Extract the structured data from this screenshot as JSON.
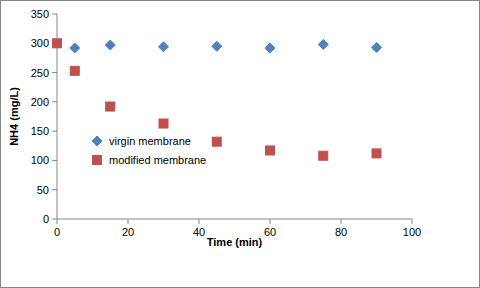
{
  "chart_data": {
    "type": "scatter",
    "x_label": "Time (min)",
    "y_label": "NH4 (mg/L)",
    "xlim": [
      0,
      100
    ],
    "xticks": [
      0,
      20,
      40,
      60,
      80,
      100
    ],
    "ylim": [
      0,
      350
    ],
    "yticks": [
      0,
      50,
      100,
      150,
      200,
      250,
      300,
      350
    ],
    "grid": false,
    "legend": "lower left",
    "series": [
      {
        "name": "virgin membrane",
        "color": "#4f81bd",
        "marker": "diamond",
        "x": [
          5,
          15,
          30,
          45,
          60,
          75,
          90
        ],
        "values": [
          292,
          297,
          294,
          295,
          292,
          298,
          293
        ]
      },
      {
        "name": "modified membrane",
        "color": "#c0504d",
        "marker": "square",
        "x": [
          0,
          5,
          15,
          30,
          45,
          60,
          75,
          90
        ],
        "values": [
          300,
          253,
          192,
          163,
          132,
          117,
          108,
          112
        ]
      }
    ]
  }
}
